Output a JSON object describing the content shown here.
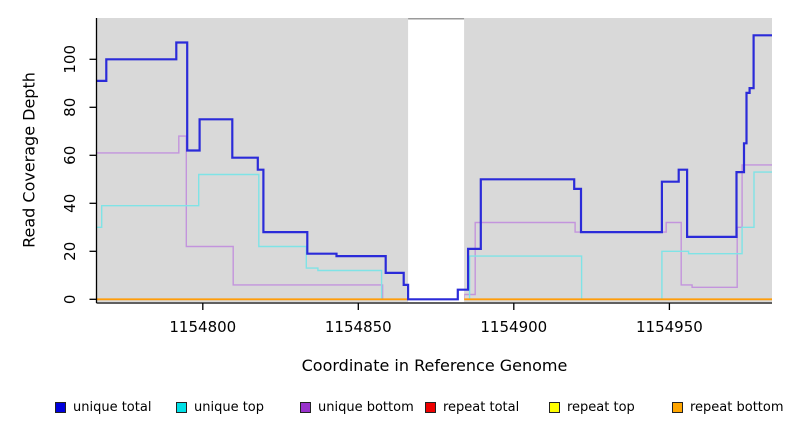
{
  "figure": {
    "background": "#ffffff",
    "plot_background": "#d9d9d9",
    "no_data_band": {
      "from": 1154866,
      "to": 1154884,
      "color": "#ffffff",
      "top_edge_color": "#9a9a9a"
    },
    "axis_color": "#000000",
    "y_axis": {
      "title": "Read Coverage Depth",
      "ticks": [
        0,
        20,
        40,
        60,
        80,
        100
      ]
    },
    "x_axis": {
      "title": "Coordinate in Reference Genome",
      "ticks": [
        1154800,
        1154850,
        1154900,
        1154950
      ]
    }
  },
  "chart_data": {
    "type": "line",
    "subtype": "step-coverage-plot",
    "title": "",
    "xlabel": "Coordinate in Reference Genome",
    "ylabel": "Read Coverage Depth",
    "xlim": [
      1154766,
      1154983
    ],
    "ylim": [
      0,
      117
    ],
    "grid": false,
    "legend_position": "bottom",
    "segment_format": "[start_coordinate, end_coordinate, read_depth]",
    "series": [
      {
        "name": "unique total",
        "line_color": "#2b2bd9",
        "legend_color": "#0000dd",
        "line_width": 2.2,
        "segments": [
          [
            1154766,
            1154769,
            91
          ],
          [
            1154769,
            1154791.5,
            100
          ],
          [
            1154791.5,
            1154795,
            107
          ],
          [
            1154795,
            1154799,
            62
          ],
          [
            1154799,
            1154809.5,
            75
          ],
          [
            1154809.5,
            1154817.7,
            59
          ],
          [
            1154817.7,
            1154819.5,
            54
          ],
          [
            1154819.5,
            1154833.6,
            28
          ],
          [
            1154833.6,
            1154843,
            19
          ],
          [
            1154843,
            1154858.8,
            18
          ],
          [
            1154858.8,
            1154864.6,
            11
          ],
          [
            1154864.6,
            1154866,
            6
          ],
          [
            1154866,
            1154882,
            0
          ],
          [
            1154882,
            1154885.3,
            4
          ],
          [
            1154885.3,
            1154889.4,
            21
          ],
          [
            1154889.4,
            1154919.4,
            50
          ],
          [
            1154919.4,
            1154921.6,
            46
          ],
          [
            1154921.6,
            1154947.6,
            28
          ],
          [
            1154947.6,
            1154953,
            49
          ],
          [
            1154953,
            1154955.7,
            54
          ],
          [
            1154955.7,
            1154971.6,
            26
          ],
          [
            1154971.6,
            1154974,
            53
          ],
          [
            1154974,
            1154974.8,
            65
          ],
          [
            1154974.8,
            1154975.8,
            86
          ],
          [
            1154975.8,
            1154977.1,
            88
          ],
          [
            1154977.1,
            1154983,
            110
          ]
        ]
      },
      {
        "name": "unique top",
        "line_color": "#7fe3e6",
        "legend_color": "#00e0e6",
        "line_width": 1.4,
        "segments": [
          [
            1154766,
            1154767.5,
            30
          ],
          [
            1154767.5,
            1154798.7,
            39
          ],
          [
            1154798.7,
            1154818,
            52
          ],
          [
            1154818,
            1154833.3,
            22
          ],
          [
            1154833.3,
            1154837,
            13
          ],
          [
            1154837,
            1154857.5,
            12
          ],
          [
            1154857.5,
            1154885.8,
            0
          ],
          [
            1154885.8,
            1154921.8,
            18
          ],
          [
            1154921.8,
            1154947.6,
            0
          ],
          [
            1154947.6,
            1154956.2,
            20
          ],
          [
            1154956.2,
            1154973.4,
            19
          ],
          [
            1154973.4,
            1154977.2,
            30
          ],
          [
            1154977.2,
            1154983,
            53
          ]
        ]
      },
      {
        "name": "unique bottom",
        "line_color": "#c394dd",
        "legend_color": "#9932cc",
        "line_width": 1.4,
        "segments": [
          [
            1154766,
            1154792.3,
            61
          ],
          [
            1154792.3,
            1154794.7,
            68
          ],
          [
            1154794.7,
            1154809.8,
            22
          ],
          [
            1154809.8,
            1154857.8,
            6
          ],
          [
            1154857.8,
            1154884,
            0
          ],
          [
            1154884,
            1154887.6,
            2
          ],
          [
            1154887.6,
            1154919.7,
            32
          ],
          [
            1154919.7,
            1154949,
            28
          ],
          [
            1154949,
            1154953.8,
            32
          ],
          [
            1154953.8,
            1154957.3,
            6
          ],
          [
            1154957.3,
            1154971.8,
            5
          ],
          [
            1154971.8,
            1154973.4,
            30
          ],
          [
            1154973.4,
            1154983,
            56
          ]
        ]
      },
      {
        "name": "repeat total",
        "line_color": "#dd0000",
        "legend_color": "#ee0000",
        "line_width": 1.4,
        "segments": [
          [
            1154766,
            1154983,
            0
          ]
        ]
      },
      {
        "name": "repeat top",
        "line_color": "#ffff00",
        "legend_color": "#ffff00",
        "line_width": 1.4,
        "segments": [
          [
            1154766,
            1154983,
            0
          ]
        ]
      },
      {
        "name": "repeat bottom",
        "line_color": "#ff9d0a",
        "legend_color": "#ffa500",
        "line_width": 1.8,
        "segments": [
          [
            1154766,
            1154983,
            0
          ]
        ]
      }
    ]
  }
}
